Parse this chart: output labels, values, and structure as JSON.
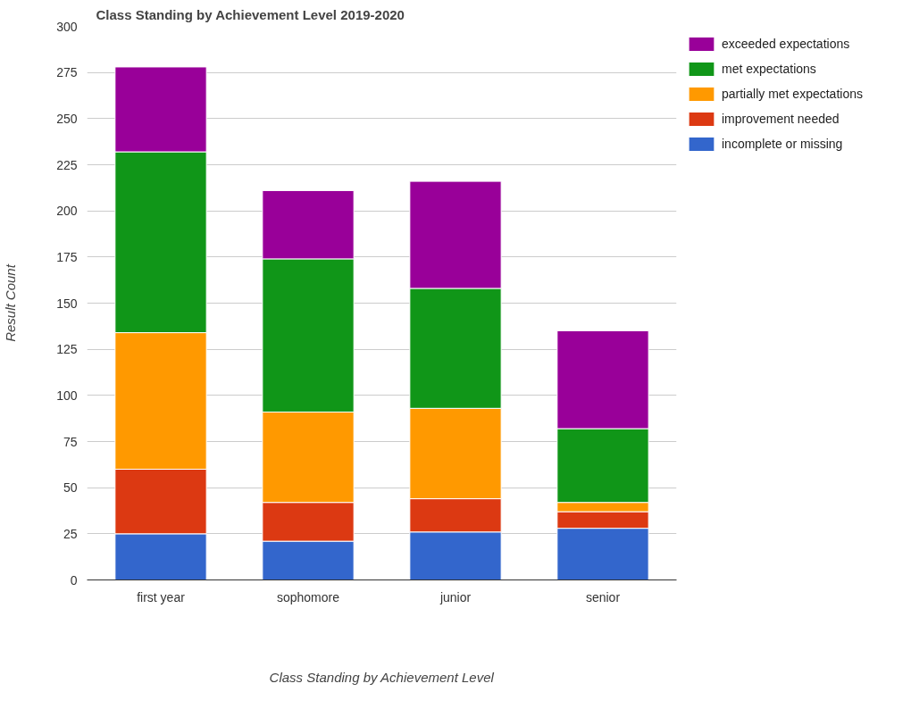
{
  "chart_data": {
    "type": "bar",
    "title": "Class Standing by Achievement Level 2019-2020",
    "xlabel": "Class Standing by Achievement Level",
    "ylabel": "Result Count",
    "categories": [
      "first year",
      "sophomore",
      "junior",
      "senior"
    ],
    "stacked": true,
    "series": [
      {
        "name": "incomplete or missing",
        "color": "#3366cc",
        "values": [
          25,
          21,
          26,
          28
        ]
      },
      {
        "name": "improvement needed",
        "color": "#dc3912",
        "values": [
          35,
          21,
          18,
          9
        ]
      },
      {
        "name": "partially met expectations",
        "color": "#ff9900",
        "values": [
          74,
          49,
          49,
          5
        ]
      },
      {
        "name": "met expectations",
        "color": "#109618",
        "values": [
          98,
          83,
          65,
          40
        ]
      },
      {
        "name": "exceeded expectations",
        "color": "#990099",
        "values": [
          46,
          37,
          58,
          53
        ]
      }
    ],
    "ylim": [
      0,
      300
    ],
    "yticks": [
      0,
      25,
      50,
      75,
      100,
      125,
      150,
      175,
      200,
      225,
      250,
      275,
      300
    ],
    "grid": "y",
    "legend": "top right"
  }
}
